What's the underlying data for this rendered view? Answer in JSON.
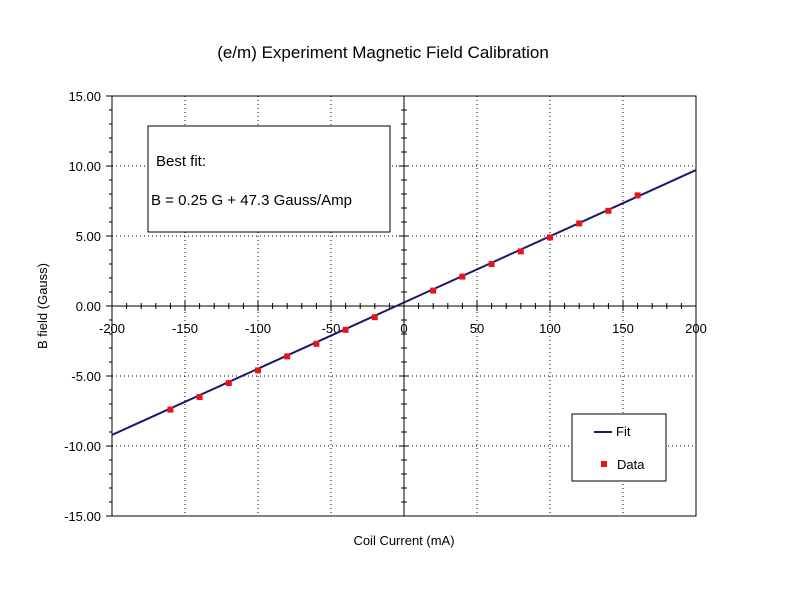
{
  "chart_data": {
    "type": "scatter",
    "title": "(e/m) Experiment Magnetic Field Calibration",
    "xlabel": "Coil Current (mA)",
    "ylabel": "B field (Gauss)",
    "xlim": [
      -200,
      200
    ],
    "ylim": [
      -15,
      15
    ],
    "x_ticks": [
      -200,
      -150,
      -100,
      -50,
      0,
      50,
      100,
      150,
      200
    ],
    "x_tick_labels": [
      "-200",
      "-150",
      "-100",
      "-50",
      "0",
      "50",
      "100",
      "150",
      "200"
    ],
    "y_ticks": [
      15,
      10,
      5,
      0,
      -5,
      -10,
      -15
    ],
    "y_tick_labels": [
      "15.00",
      "10.00",
      "5.00",
      "0.00",
      "-5.00",
      "-10.00",
      "-15.00"
    ],
    "grid": true,
    "annotation": {
      "line1": "Best fit:",
      "line2": "B = 0.25 G + 47.3 Gauss/Amp"
    },
    "legend_position": "bottom-right",
    "series": [
      {
        "name": "Fit",
        "kind": "line",
        "color": "#1a1a6e",
        "intercept": 0.25,
        "slope_per_mA": 0.0473,
        "x": [
          -200,
          200
        ],
        "y": [
          -9.21,
          9.71
        ]
      },
      {
        "name": "Data",
        "kind": "scatter",
        "color": "#e8141c",
        "x": [
          -160,
          -140,
          -120,
          -100,
          -80,
          -60,
          -40,
          -20,
          20,
          40,
          60,
          80,
          100,
          120,
          140,
          160
        ],
        "y": [
          -7.4,
          -6.5,
          -5.5,
          -4.6,
          -3.6,
          -2.7,
          -1.7,
          -0.8,
          1.1,
          2.1,
          3.0,
          3.9,
          4.9,
          5.9,
          6.8,
          7.9
        ]
      }
    ]
  }
}
